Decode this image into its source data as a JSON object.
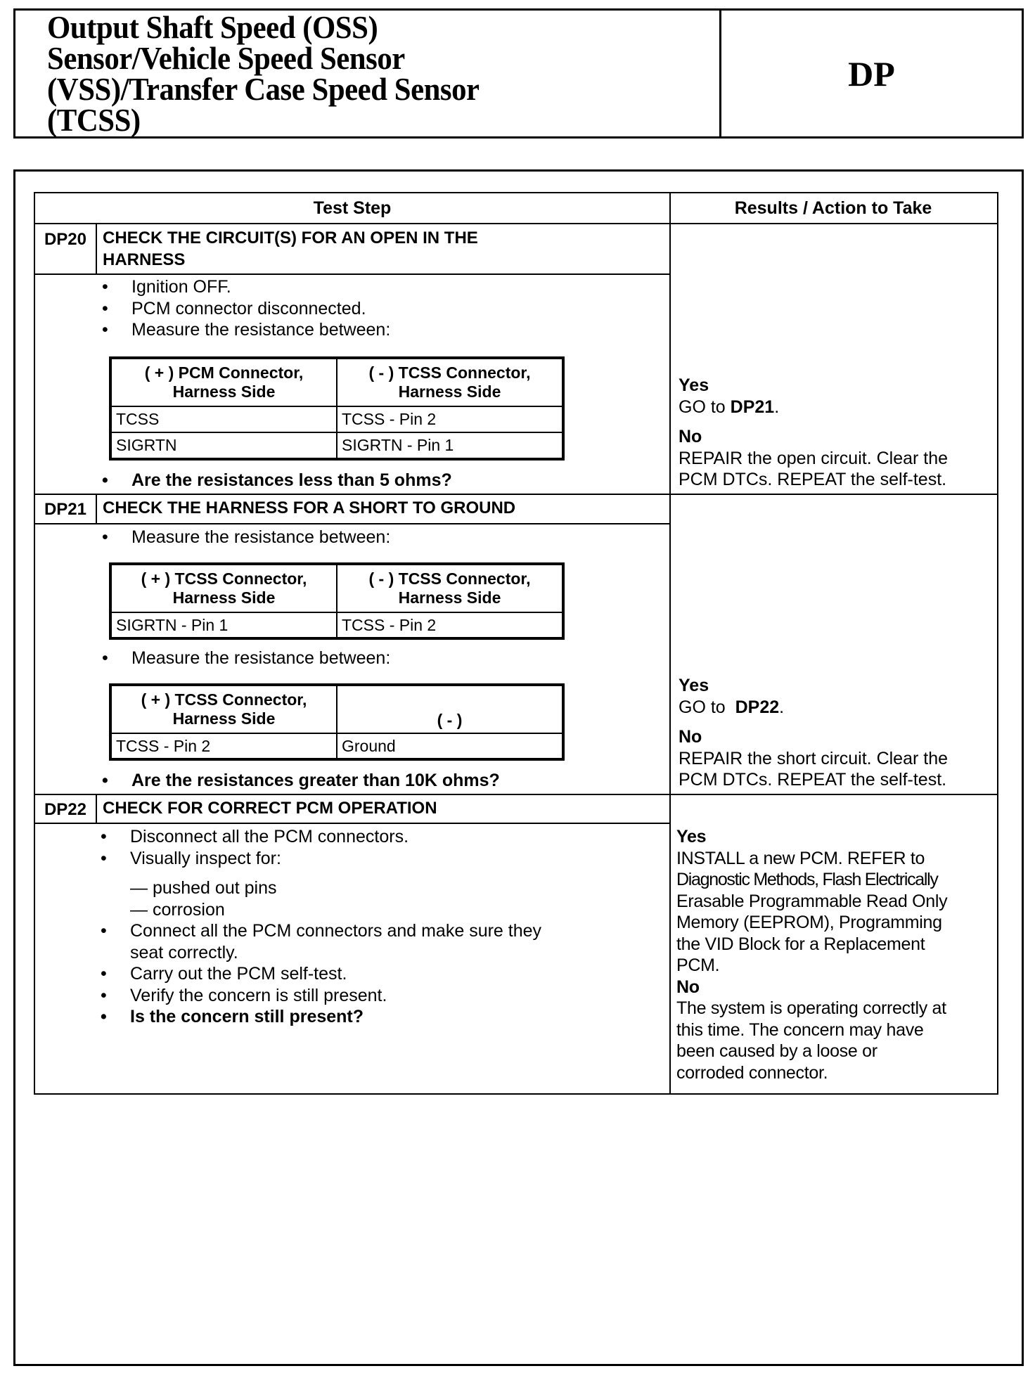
{
  "header": {
    "title_lines": [
      "Output Shaft Speed (OSS)",
      "Sensor/Vehicle Speed Sensor",
      "(VSS)/Transfer Case Speed Sensor",
      "(TCSS)"
    ],
    "code": "DP"
  },
  "table": {
    "col_test_step": "Test Step",
    "col_results": "Results / Action to Take"
  },
  "steps": [
    {
      "id": "DP20",
      "title_lines": [
        "CHECK THE  CIRCUIT(S) FOR AN OPEN IN THE",
        "HARNESS"
      ],
      "bullets": [
        "Ignition OFF.",
        "PCM connector disconnected.",
        "Measure the resistance between:"
      ],
      "subtable": {
        "headers": [
          [
            "( + ) PCM Connector,",
            "Harness Side"
          ],
          [
            "( - ) TCSS Connector,",
            "Harness Side"
          ]
        ],
        "rows": [
          [
            "TCSS",
            "TCSS - Pin 2"
          ],
          [
            "SIGRTN",
            "SIGRTN - Pin 1"
          ]
        ]
      },
      "question": "Are the resistances less than 5 ohms?",
      "yes_label": "Yes",
      "yes_lines": [
        "GO to  DP21."
      ],
      "yes_ref": "DP21",
      "no_label": "No",
      "no_lines": [
        "REPAIR the open circuit. Clear the",
        "PCM DTCs. REPEAT the self-test."
      ]
    },
    {
      "id": "DP21",
      "title_lines": [
        "CHECK THE HARNESS FOR A SHORT TO GROUND"
      ],
      "bullets": [
        "Measure the resistance between:",
        "Measure the resistance between:"
      ],
      "subtable1": {
        "headers": [
          [
            "( + ) TCSS Connector,",
            "Harness Side"
          ],
          [
            "( - ) TCSS Connector,",
            "Harness Side"
          ]
        ],
        "rows": [
          [
            "SIGRTN - Pin 1",
            "TCSS - Pin 2"
          ]
        ]
      },
      "subtable2": {
        "headers": [
          [
            "( + ) TCSS Connector,",
            "Harness Side"
          ],
          [
            "( - )"
          ]
        ],
        "rows": [
          [
            "TCSS - Pin 2",
            "Ground"
          ]
        ]
      },
      "question": "Are the resistances greater than 10K ohms?",
      "yes_label": "Yes",
      "yes_ref": "DP22",
      "go_to": "GO to",
      "no_label": "No",
      "no_lines": [
        "REPAIR the short circuit. Clear the",
        "PCM DTCs. REPEAT the self-test."
      ]
    },
    {
      "id": "DP22",
      "title_lines": [
        "CHECK FOR CORRECT PCM OPERATION"
      ],
      "bullets": [
        "Disconnect all the PCM connectors.",
        "Visually inspect for:"
      ],
      "dashes": [
        "— pushed out pins",
        "— corrosion"
      ],
      "bullets2": [
        "Connect all the PCM connectors and make sure they",
        "seat correctly.",
        "Carry out the PCM self-test.",
        "Verify the concern is still present."
      ],
      "question": "Is the concern still present?",
      "yes_label": "Yes",
      "yes_lines": [
        "INSTALL a new PCM. REFER to",
        "Diagnostic Methods, Flash Electrically",
        "Erasable Programmable Read Only",
        "Memory (EEPROM), Programming",
        "the VID Block for a Replacement",
        "PCM."
      ],
      "no_label": "No",
      "no_lines": [
        "The system is operating correctly at",
        "this time. The concern may have",
        "been caused by a loose or",
        "corroded connector."
      ]
    }
  ]
}
